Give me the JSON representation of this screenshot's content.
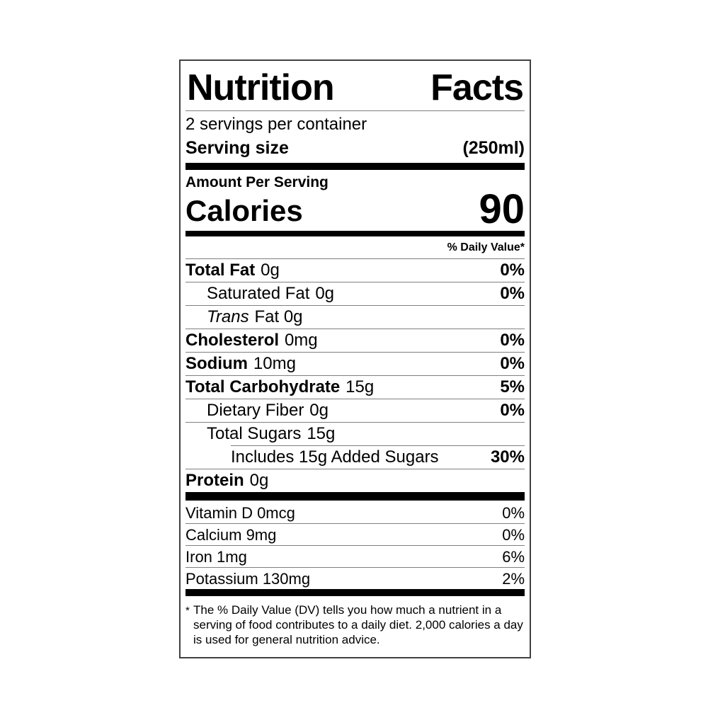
{
  "label": {
    "title_words": [
      "Nutrition",
      "Facts"
    ],
    "servings_per_container": "2 servings per container",
    "serving_size": {
      "label": "Serving size",
      "value": "(250ml)"
    },
    "amount_per_serving": "Amount Per Serving",
    "calories": {
      "label": "Calories",
      "value": "90"
    },
    "daily_value_header": "% Daily Value*",
    "nutrients": [
      {
        "name": "Total Fat",
        "amount": "0g",
        "dv": "0%"
      },
      {
        "name": "Saturated Fat",
        "amount": "0g",
        "dv": "0%"
      },
      {
        "name": "Trans",
        "amount": "Fat 0g",
        "dv": ""
      },
      {
        "name": "Cholesterol",
        "amount": "0mg",
        "dv": "0%"
      },
      {
        "name": "Sodium",
        "amount": "10mg",
        "dv": "0%"
      },
      {
        "name": "Total Carbohydrate",
        "amount": "15g",
        "dv": "5%"
      },
      {
        "name": "Dietary Fiber",
        "amount": "0g",
        "dv": "0%"
      },
      {
        "name": "Total Sugars",
        "amount": "15g",
        "dv": ""
      },
      {
        "name": "Includes 15g Added Sugars",
        "amount": "",
        "dv": "30%"
      },
      {
        "name": "Protein",
        "amount": "0g",
        "dv": ""
      }
    ],
    "vitamins": [
      {
        "name": "Vitamin D 0mcg",
        "dv": "0%"
      },
      {
        "name": "Calcium 9mg",
        "dv": "0%"
      },
      {
        "name": "Iron 1mg",
        "dv": "6%"
      },
      {
        "name": "Potassium 130mg",
        "dv": "2%"
      }
    ],
    "footnote": {
      "marker": "*",
      "text": "The % Daily Value (DV) tells you how much a nutrient in a serving of food contributes to a daily diet. 2,000 calories a day is used for general nutrition advice."
    },
    "colors": {
      "text": "#000000",
      "bar": "#000000",
      "hairline": "#7f7f7f",
      "border": "#404040",
      "background": "#ffffff"
    }
  }
}
